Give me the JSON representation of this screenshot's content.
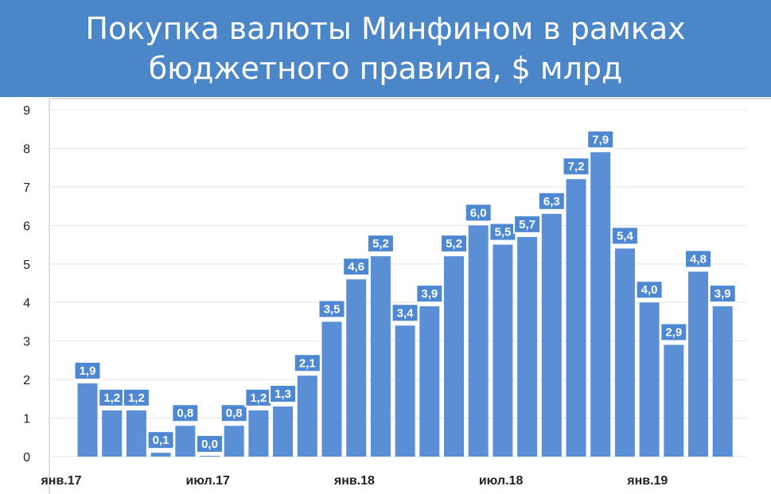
{
  "title": {
    "line1": "Покупка валюты Минфином в рамках",
    "line2": "бюджетного правила, $ млрд"
  },
  "colors": {
    "bar": "#5a8fd6",
    "label_box": "#4f88d2",
    "title_bg": "#4a86c8"
  },
  "chart_data": {
    "type": "bar",
    "title": "Покупка валюты Минфином в рамках бюджетного правила, $ млрд",
    "xlabel": "",
    "ylabel": "",
    "ylim": [
      0,
      9
    ],
    "yticks": [
      "0",
      "1",
      "2",
      "3",
      "4",
      "5",
      "6",
      "7",
      "8",
      "9"
    ],
    "grid": true,
    "legend": "none",
    "xtick_labels": [
      {
        "index": 0,
        "label": "янв.17"
      },
      {
        "index": 6,
        "label": "июл.17"
      },
      {
        "index": 12,
        "label": "янв.18"
      },
      {
        "index": 18,
        "label": "июл.18"
      },
      {
        "index": 24,
        "label": "янв.19"
      }
    ],
    "values": [
      1.9,
      1.2,
      1.2,
      0.1,
      0.8,
      0.0,
      0.8,
      1.2,
      1.3,
      2.1,
      3.5,
      4.6,
      5.2,
      3.4,
      3.9,
      5.2,
      6.0,
      5.5,
      5.7,
      6.3,
      7.2,
      7.9,
      5.4,
      4.0,
      2.9,
      4.8,
      3.9
    ],
    "labels": [
      "1,9",
      "1,2",
      "1,2",
      "0,1",
      "0,8",
      "0,0",
      "0,8",
      "1,2",
      "1,3",
      "2,1",
      "3,5",
      "4,6",
      "5,2",
      "3,4",
      "3,9",
      "5,2",
      "6,0",
      "5,5",
      "5,7",
      "6,3",
      "7,2",
      "7,9",
      "5,4",
      "4,0",
      "2,9",
      "4,8",
      "3,9"
    ]
  }
}
